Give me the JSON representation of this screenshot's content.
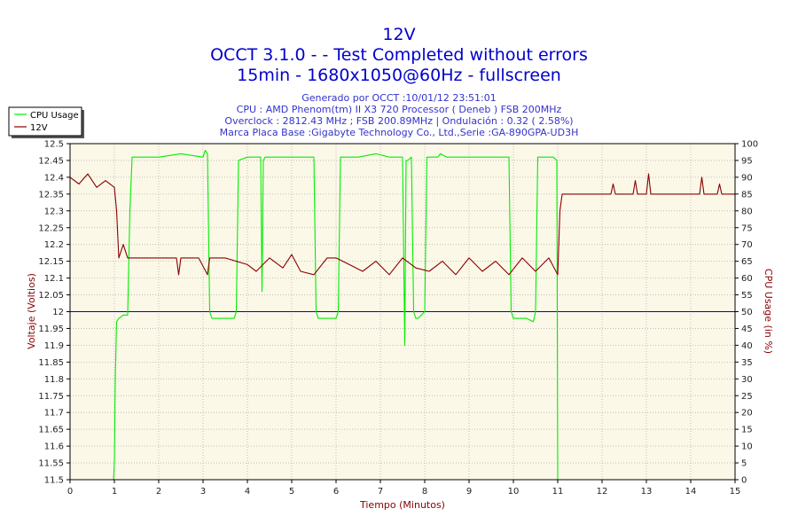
{
  "header": {
    "title": "12V",
    "subtitle1": "OCCT 3.1.0 -  - Test Completed without errors",
    "subtitle2": "15min - 1680x1050@60Hz - fullscreen",
    "info1": "Generado por OCCT :10/01/12 23:51:01",
    "info2": "CPU : AMD Phenom(tm) II X3 720 Processor ( Deneb ) FSB 200MHz",
    "info3": "Overclock : 2812.43 MHz ; FSB 200.89MHz | Ondulación : 0.32 ( 2.58%)",
    "info4": "Marca Placa Base :Gigabyte Technology Co., Ltd.,Serie :GA-890GPA-UD3H"
  },
  "colors": {
    "plot_bg": "#fcf8e8",
    "grid": "#b0b0b0",
    "cpu_series": "#00ee00",
    "volt_series": "#880000",
    "reference_line": "#0000cc",
    "axis_title": "#880000"
  },
  "chart_data": {
    "type": "line",
    "xlabel": "Tiempo (Minutos)",
    "ylabel": "Voltaje (Voltios)",
    "y2label": "CPU Usage (in %)",
    "xlim": [
      0,
      15
    ],
    "ylim": [
      11.5,
      12.5
    ],
    "y2lim": [
      0,
      100
    ],
    "x_ticks": [
      0,
      1,
      2,
      3,
      4,
      5,
      6,
      7,
      8,
      9,
      10,
      11,
      12,
      13,
      14,
      15
    ],
    "y_ticks": [
      "11.5",
      "11.55",
      "11.6",
      "11.65",
      "11.7",
      "11.75",
      "11.8",
      "11.85",
      "11.9",
      "11.95",
      "12",
      "12.05",
      "12.1",
      "12.15",
      "12.2",
      "12.25",
      "12.3",
      "12.35",
      "12.4",
      "12.45",
      "12.5"
    ],
    "y2_ticks": [
      0,
      5,
      10,
      15,
      20,
      25,
      30,
      35,
      40,
      45,
      50,
      55,
      60,
      65,
      70,
      75,
      80,
      85,
      90,
      95,
      100
    ],
    "grid": true,
    "legend": "top-left",
    "reference_value": 12,
    "series": [
      {
        "name": "CPU Usage",
        "axis": "right",
        "x": [
          0,
          0.98,
          1.0,
          1.02,
          1.05,
          1.1,
          1.2,
          1.3,
          1.35,
          1.4,
          1.6,
          2.0,
          2.5,
          3.0,
          3.05,
          3.1,
          3.15,
          3.2,
          3.25,
          3.5,
          3.7,
          3.75,
          3.8,
          4.0,
          4.2,
          4.3,
          4.33,
          4.36,
          4.4,
          4.6,
          4.9,
          5.2,
          5.5,
          5.55,
          5.6,
          5.9,
          6.0,
          6.05,
          6.1,
          6.2,
          6.5,
          6.9,
          7.2,
          7.5,
          7.55,
          7.58,
          7.62,
          7.7,
          7.75,
          7.8,
          7.85,
          8.0,
          8.05,
          8.2,
          8.3,
          8.35,
          8.5,
          9.0,
          9.5,
          9.9,
          9.95,
          10.0,
          10.3,
          10.45,
          10.5,
          10.55,
          10.7,
          10.9,
          10.98,
          11.0,
          11.02,
          15
        ],
        "values": [
          0,
          0,
          5,
          30,
          47,
          48,
          49,
          49,
          80,
          96,
          96,
          96,
          97,
          96,
          98,
          97,
          50,
          48,
          48,
          48,
          48,
          50,
          95,
          96,
          96,
          96,
          56,
          95,
          96,
          96,
          96,
          96,
          96,
          50,
          48,
          48,
          48,
          50,
          96,
          96,
          96,
          97,
          96,
          96,
          40,
          95,
          95,
          96,
          50,
          48,
          48,
          50,
          96,
          96,
          96,
          97,
          96,
          96,
          96,
          96,
          50,
          48,
          48,
          47,
          50,
          96,
          96,
          96,
          95,
          0,
          0,
          0
        ]
      },
      {
        "name": "12V",
        "axis": "left",
        "x": [
          0,
          0.2,
          0.4,
          0.6,
          0.8,
          1.0,
          1.05,
          1.1,
          1.2,
          1.3,
          1.4,
          2.0,
          2.4,
          2.45,
          2.5,
          2.9,
          3.1,
          3.15,
          3.2,
          3.5,
          4.0,
          4.2,
          4.5,
          4.8,
          5.0,
          5.2,
          5.5,
          5.8,
          6.0,
          6.3,
          6.6,
          6.9,
          7.2,
          7.5,
          7.8,
          8.1,
          8.4,
          8.7,
          9.0,
          9.3,
          9.6,
          9.9,
          10.2,
          10.5,
          10.8,
          11.0,
          11.05,
          11.1,
          12.0,
          12.2,
          12.25,
          12.3,
          12.7,
          12.75,
          12.8,
          13.0,
          13.05,
          13.1,
          14.2,
          14.25,
          14.3,
          14.6,
          14.65,
          14.7,
          15
        ],
        "values": [
          12.4,
          12.38,
          12.41,
          12.37,
          12.39,
          12.37,
          12.3,
          12.16,
          12.2,
          12.16,
          12.16,
          12.16,
          12.16,
          12.11,
          12.16,
          12.16,
          12.11,
          12.16,
          12.16,
          12.16,
          12.14,
          12.12,
          12.16,
          12.13,
          12.17,
          12.12,
          12.11,
          12.16,
          12.16,
          12.14,
          12.12,
          12.15,
          12.11,
          12.16,
          12.13,
          12.12,
          12.15,
          12.11,
          12.16,
          12.12,
          12.15,
          12.11,
          12.16,
          12.12,
          12.16,
          12.11,
          12.3,
          12.35,
          12.35,
          12.35,
          12.38,
          12.35,
          12.35,
          12.39,
          12.35,
          12.35,
          12.41,
          12.35,
          12.35,
          12.4,
          12.35,
          12.35,
          12.38,
          12.35,
          12.35
        ]
      }
    ]
  }
}
